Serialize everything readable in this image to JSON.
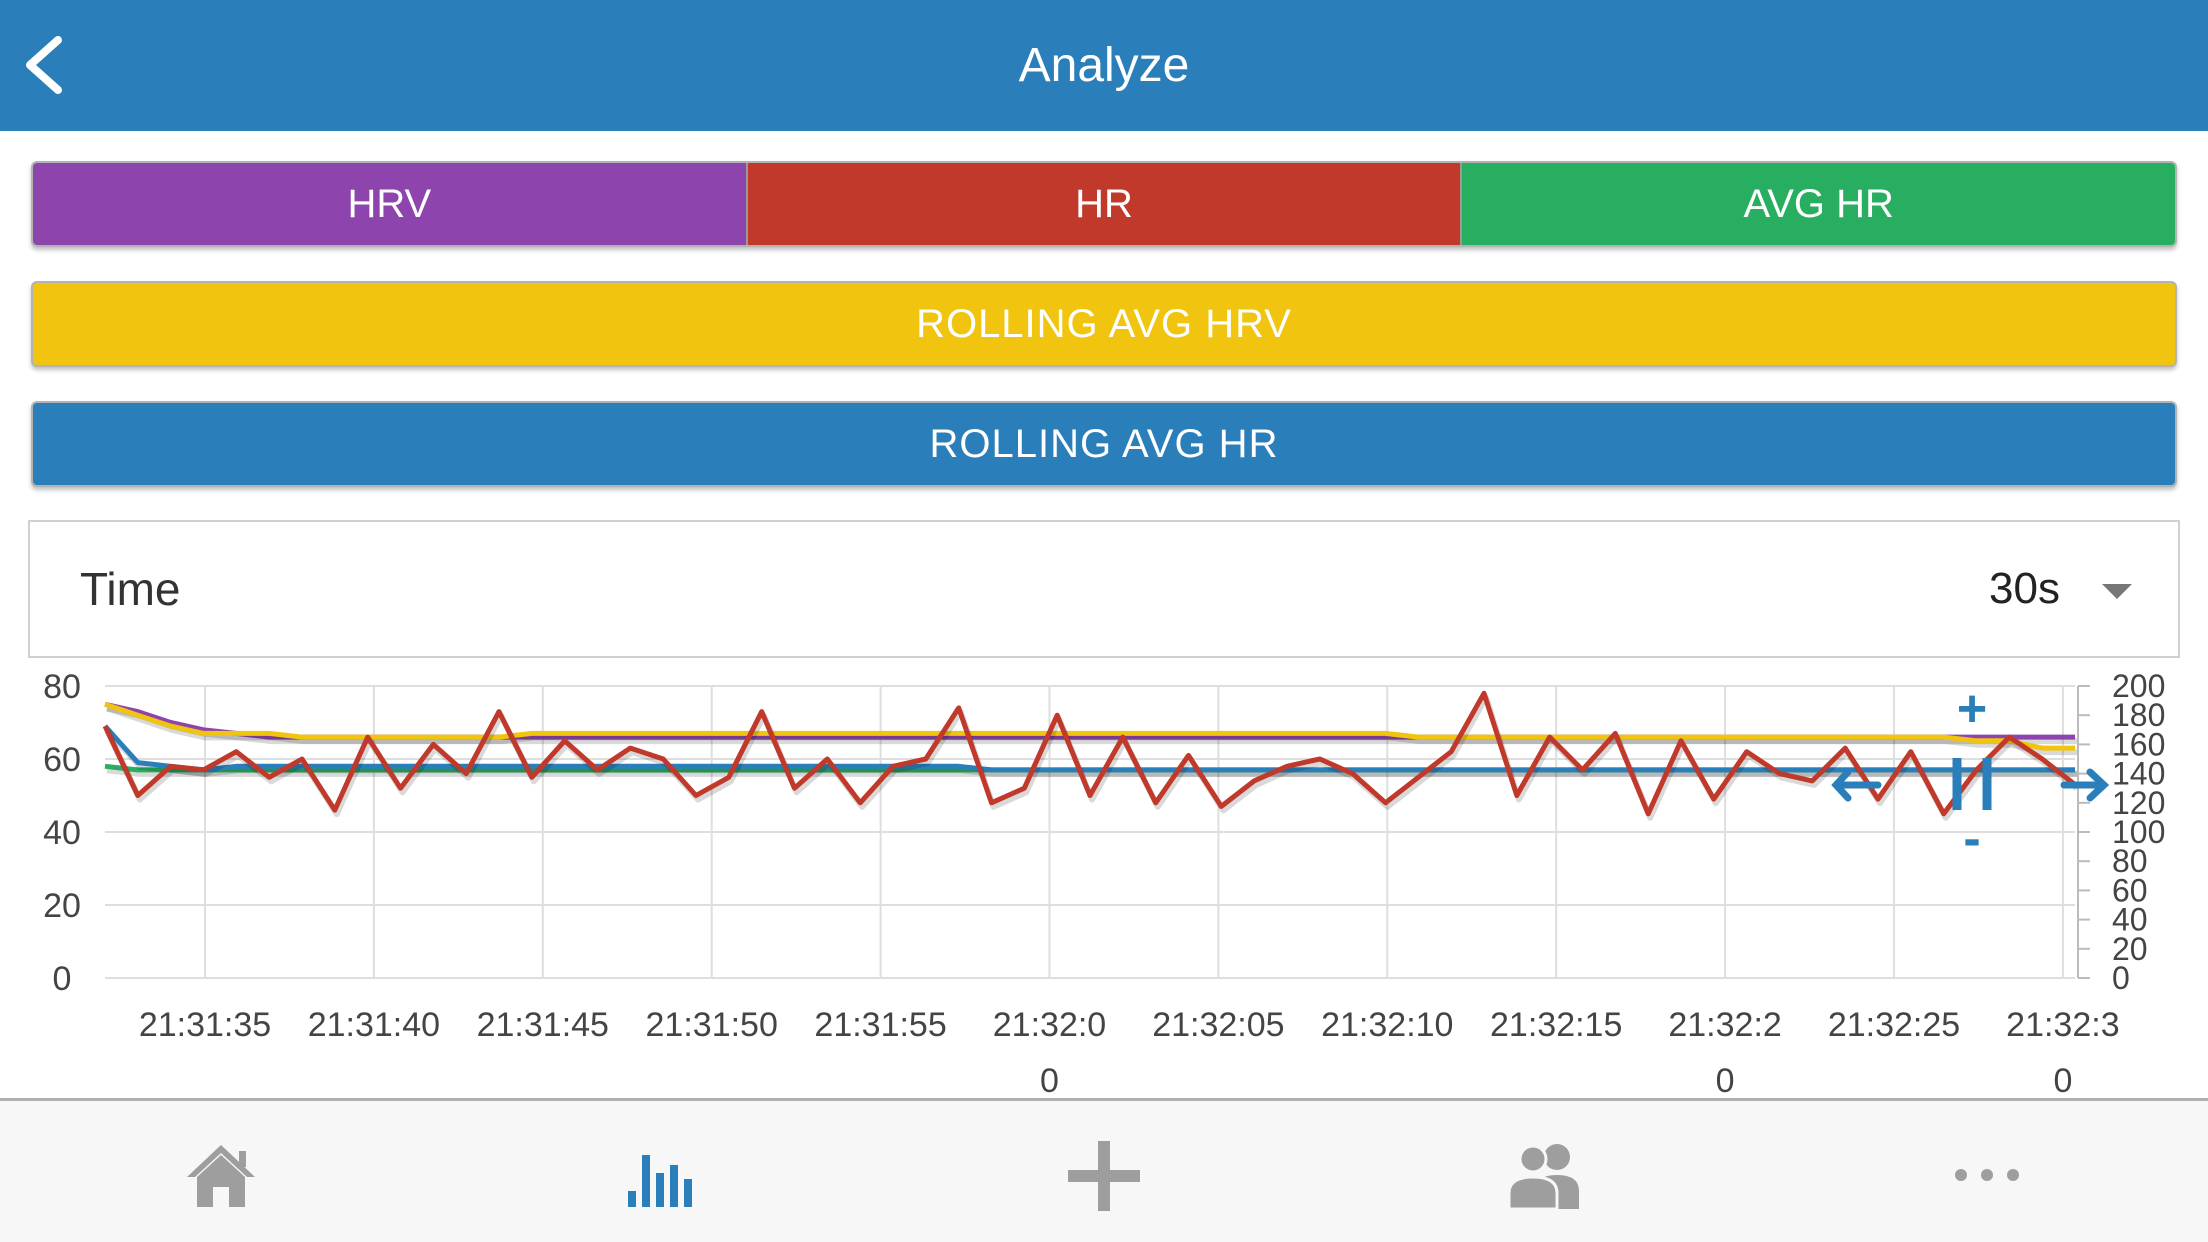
{
  "header": {
    "title": "Analyze"
  },
  "metric_buttons": [
    {
      "label": "HRV",
      "color": "#8e44ad"
    },
    {
      "label": "HR",
      "color": "#c0392b"
    },
    {
      "label": "AVG HR",
      "color": "#27ae60"
    }
  ],
  "rolling_hrv": {
    "label": "ROLLING AVG HRV",
    "color": "#f1c40f"
  },
  "rolling_hr": {
    "label": "ROLLING AVG HR",
    "color": "#2a7fbb"
  },
  "range_selector": {
    "label": "Time",
    "value": "30s"
  },
  "chart_data": {
    "type": "line",
    "x_ticks": [
      "21:31:35",
      "21:31:40",
      "21:31:45",
      "21:31:50",
      "21:31:55",
      "21:32:0",
      "21:32:05",
      "21:32:10",
      "21:32:15",
      "21:32:2",
      "21:32:25",
      "21:32:3"
    ],
    "x_ticks_line2": [
      "",
      "",
      "",
      "",
      "",
      "0",
      "",
      "",
      "",
      "0",
      "",
      "0"
    ],
    "y_left_ticks": [
      "80",
      "60",
      "40",
      "20",
      "0"
    ],
    "y_left_range": [
      0,
      80
    ],
    "y_right_ticks": [
      "200",
      "180",
      "160",
      "140",
      "120",
      "100",
      "80",
      "60",
      "40",
      "20",
      "0"
    ],
    "y_right_range": [
      0,
      200
    ],
    "grid": true,
    "zoom_controls": {
      "plus": "+",
      "minus": "-"
    },
    "series": [
      {
        "color": "#8e44ad",
        "values": [
          75,
          73,
          70,
          68,
          67,
          66,
          66,
          66,
          66,
          66,
          66,
          66,
          66,
          66,
          66,
          66,
          66,
          66,
          66,
          66,
          66,
          66,
          66,
          66,
          66,
          66,
          66,
          66,
          66,
          66,
          66,
          66,
          66,
          66,
          66,
          66,
          66,
          66,
          66,
          66,
          66,
          66,
          66,
          66,
          66,
          66,
          66,
          66,
          66,
          66,
          66,
          66,
          66,
          66,
          66,
          66,
          66,
          66,
          66,
          66,
          66
        ]
      },
      {
        "color": "#f1c40f",
        "values": [
          75,
          72,
          69,
          67,
          67,
          67,
          66,
          66,
          66,
          66,
          66,
          66,
          66,
          67,
          67,
          67,
          67,
          67,
          67,
          67,
          67,
          67,
          67,
          67,
          67,
          67,
          67,
          67,
          67,
          67,
          67,
          67,
          67,
          67,
          67,
          67,
          67,
          67,
          67,
          67,
          66,
          66,
          66,
          66,
          66,
          66,
          66,
          66,
          66,
          66,
          66,
          66,
          66,
          66,
          66,
          66,
          66,
          65,
          65,
          63,
          63
        ]
      },
      {
        "color": "#27ae60",
        "values": [
          58,
          57,
          57,
          57,
          57,
          57,
          57,
          57,
          57,
          57,
          57,
          57,
          57,
          57,
          57,
          57,
          57,
          57,
          57,
          57,
          57,
          57,
          57,
          57,
          57,
          57,
          57,
          57,
          57,
          57,
          57,
          57,
          57,
          57,
          57,
          57,
          57,
          57,
          57,
          57,
          57,
          57,
          57,
          57,
          57,
          57,
          57,
          57,
          57,
          57,
          57,
          57,
          57,
          57,
          57,
          57,
          57,
          57,
          57,
          57,
          57
        ]
      },
      {
        "color": "#2a7fbb",
        "values": [
          69,
          59,
          58,
          57,
          58,
          58,
          58,
          58,
          58,
          58,
          58,
          58,
          58,
          58,
          58,
          58,
          58,
          58,
          58,
          58,
          58,
          58,
          58,
          58,
          58,
          58,
          58,
          57,
          57,
          57,
          57,
          57,
          57,
          57,
          57,
          57,
          57,
          57,
          57,
          57,
          57,
          57,
          57,
          57,
          57,
          57,
          57,
          57,
          57,
          57,
          57,
          57,
          57,
          57,
          57,
          57,
          57,
          57,
          57,
          57,
          57
        ]
      },
      {
        "color": "#c0392b",
        "values": [
          69,
          50,
          58,
          57,
          62,
          55,
          60,
          46,
          66,
          52,
          64,
          56,
          73,
          55,
          65,
          57,
          63,
          60,
          50,
          55,
          73,
          52,
          60,
          48,
          58,
          60,
          74,
          48,
          52,
          72,
          50,
          66,
          48,
          61,
          47,
          54,
          58,
          60,
          56,
          48,
          55,
          62,
          78,
          50,
          66,
          57,
          67,
          45,
          65,
          49,
          62,
          56,
          54,
          63,
          49,
          62,
          45,
          57,
          66,
          60,
          53
        ]
      }
    ]
  },
  "tabbar": {
    "items": [
      {
        "icon": "home-icon"
      },
      {
        "icon": "bar-chart-icon"
      },
      {
        "icon": "plus-icon"
      },
      {
        "icon": "people-icon"
      },
      {
        "icon": "more-icon"
      }
    ],
    "active_color": "#2a7fbb",
    "inactive_color": "#9e9e9e"
  }
}
